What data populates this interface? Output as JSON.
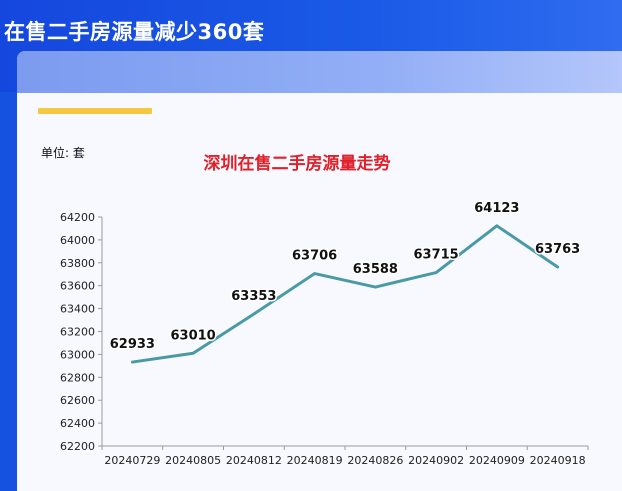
{
  "headline": "在售二手房源量减少360套",
  "colors": {
    "banner": "#1552e0",
    "card_header": "#8aa6f3",
    "accent_bar": "#f5c842",
    "title": "#e0202a",
    "line": "#4a9aa5"
  },
  "unit_label": "单位: 套",
  "chart_data": {
    "type": "line",
    "title": "深圳在售二手房源量走势",
    "xlabel": "",
    "ylabel": "",
    "categories": [
      "20240729",
      "20240805",
      "20240812",
      "20240819",
      "20240826",
      "20240902",
      "20240909",
      "20240918"
    ],
    "series": [
      {
        "values": [
          62933,
          63010,
          63353,
          63706,
          63588,
          63715,
          64123,
          63763
        ]
      }
    ],
    "ylim": [
      62200,
      64200
    ],
    "y_ticks": [
      62200,
      62400,
      62600,
      62800,
      63000,
      63200,
      63400,
      63600,
      63800,
      64000,
      64200
    ],
    "grid": false,
    "data_labels": true
  }
}
